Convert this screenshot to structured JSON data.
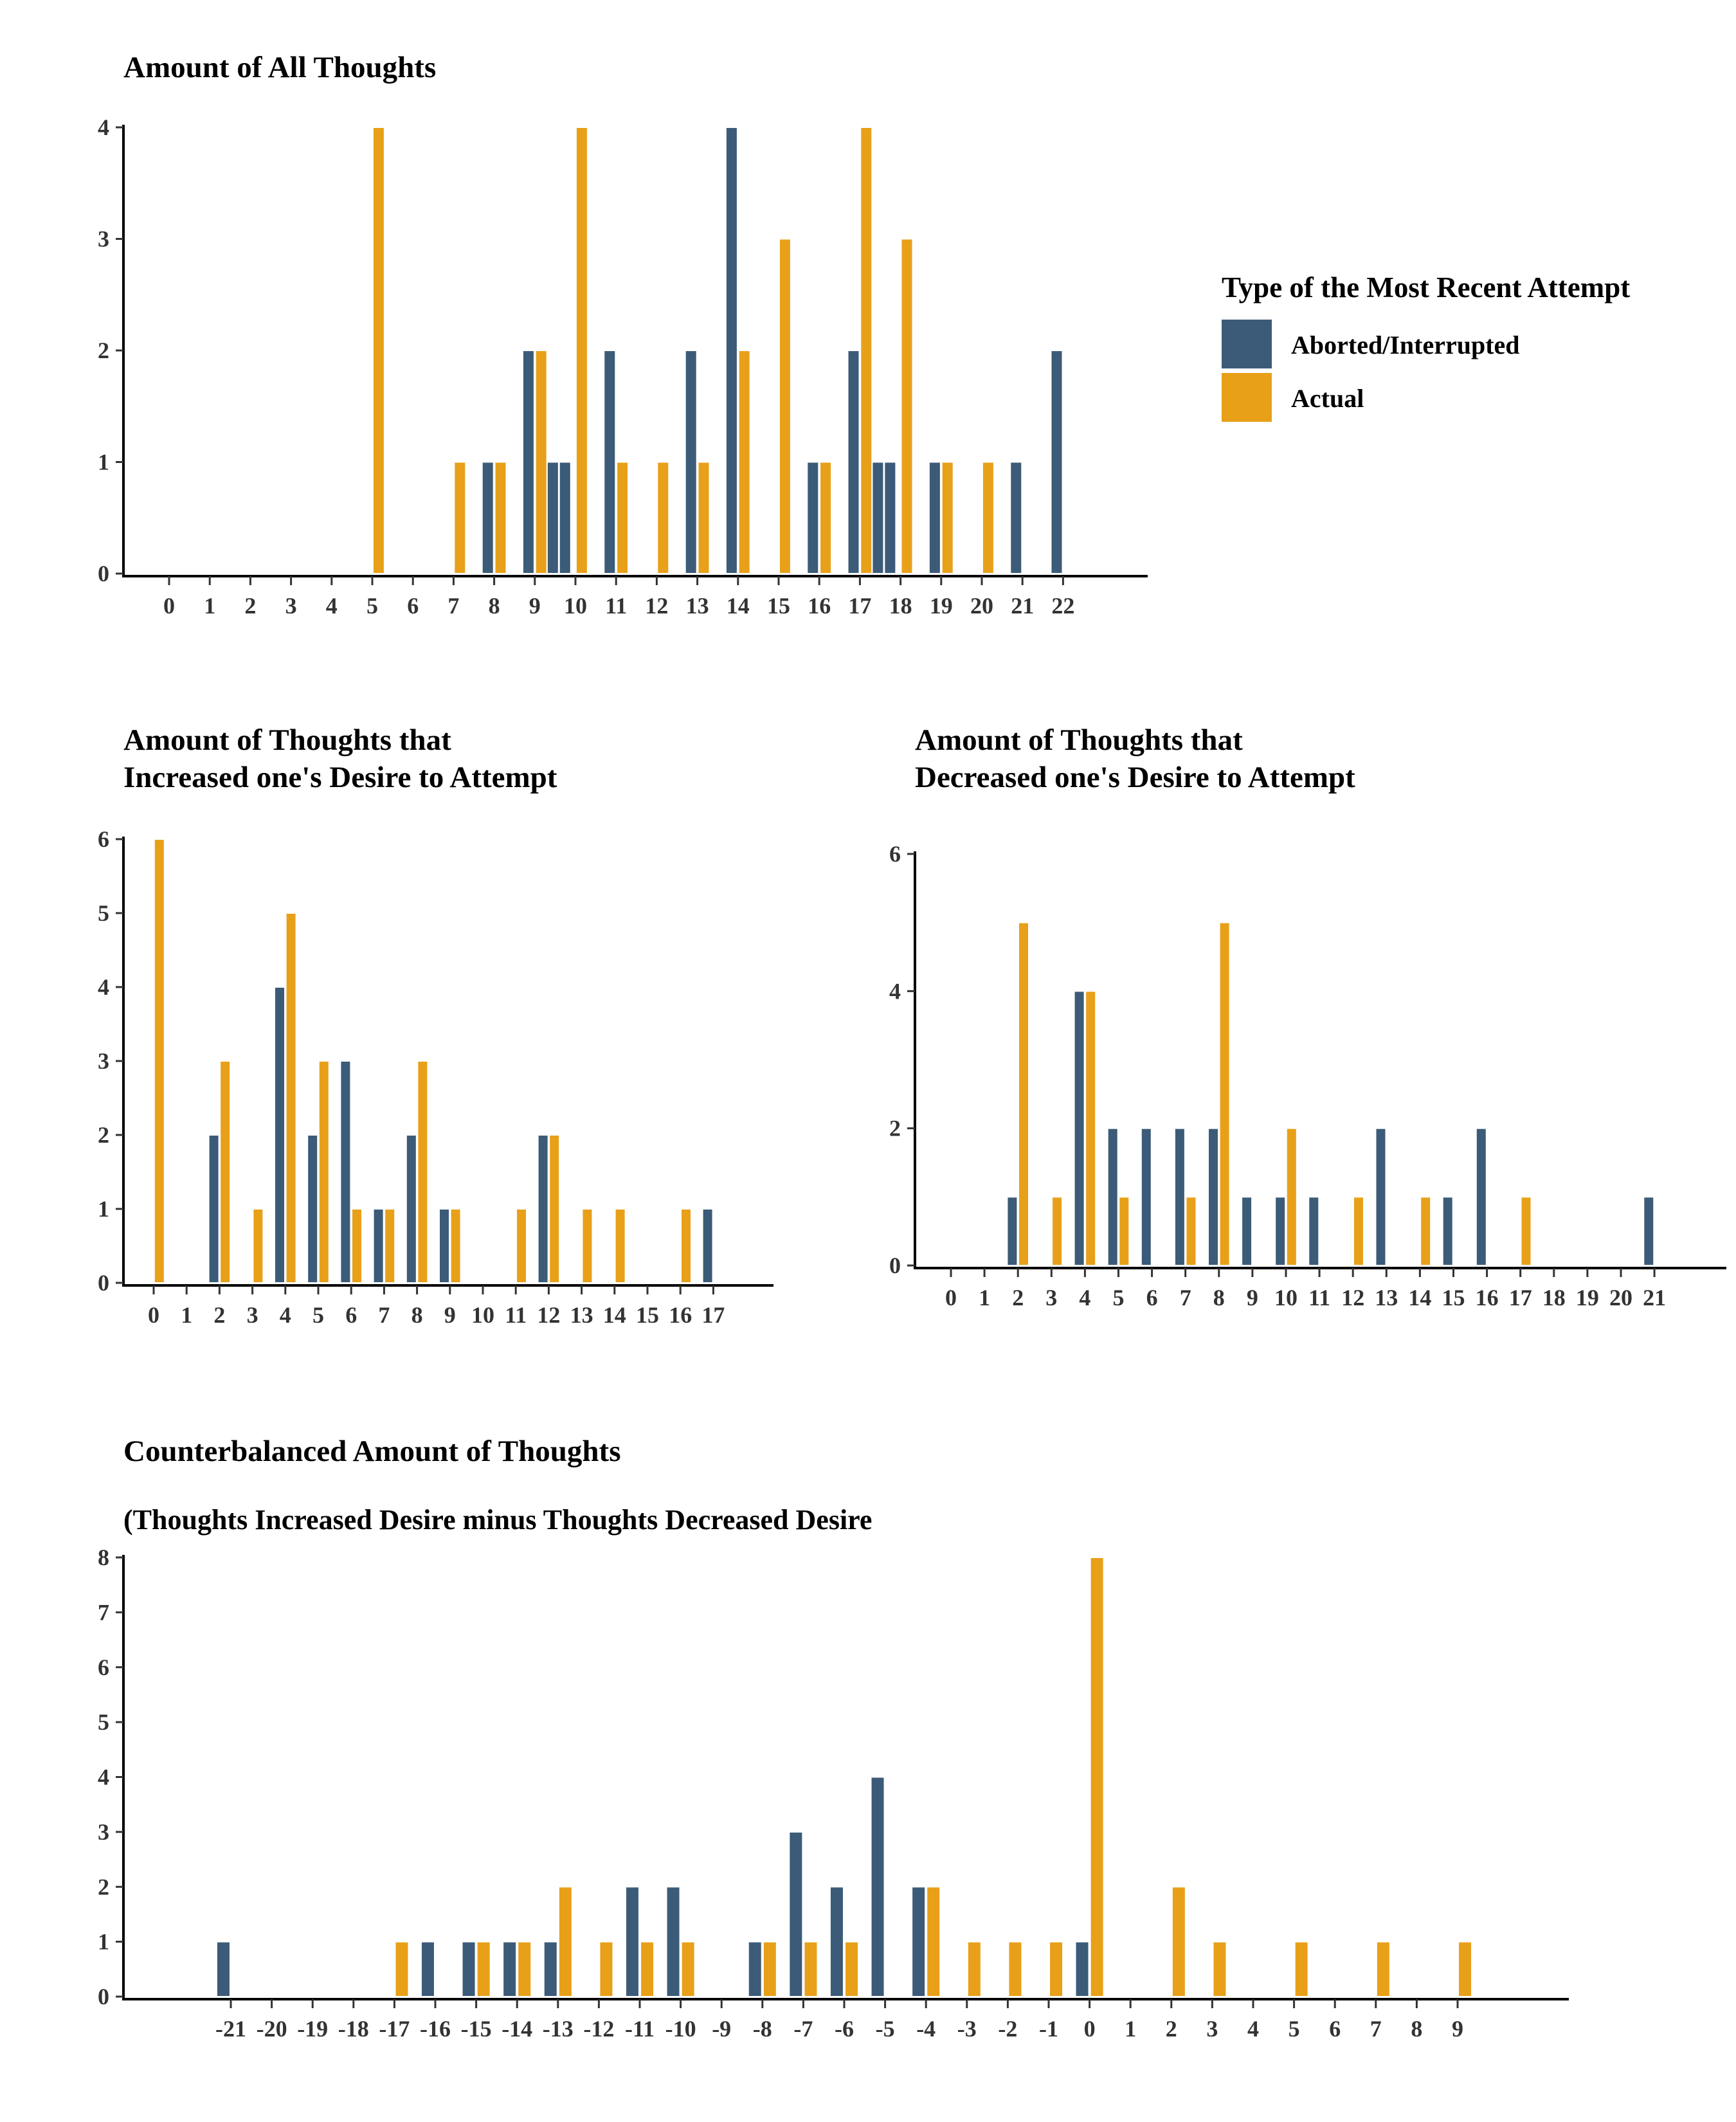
{
  "legend": {
    "title": "Type of the Most Recent Attempt",
    "items": [
      {
        "label": "Aborted/Interrupted",
        "color": "#3b5b78"
      },
      {
        "label": "Actual",
        "color": "#e8a019"
      }
    ]
  },
  "chart_data": [
    {
      "type": "bar",
      "title": "Amount of All Thoughts",
      "ylim": [
        0,
        4
      ],
      "yticks": [
        0,
        1,
        2,
        3,
        4
      ],
      "series": [
        {
          "name": "Aborted/Interrupted",
          "points": [
            [
              8,
              1
            ],
            [
              9,
              2
            ],
            [
              9.6,
              1
            ],
            [
              9.9,
              1
            ],
            [
              11,
              2
            ],
            [
              13,
              2
            ],
            [
              14,
              4
            ],
            [
              16,
              1
            ],
            [
              17,
              2
            ],
            [
              17.6,
              1
            ],
            [
              17.9,
              1
            ],
            [
              19,
              1
            ],
            [
              21,
              1
            ],
            [
              22,
              2
            ]
          ]
        },
        {
          "name": "Actual",
          "points": [
            [
              5,
              4
            ],
            [
              7,
              1
            ],
            [
              8,
              1
            ],
            [
              9,
              2
            ],
            [
              10,
              4
            ],
            [
              11,
              1
            ],
            [
              12,
              1
            ],
            [
              13,
              1
            ],
            [
              14,
              2
            ],
            [
              15,
              3
            ],
            [
              16,
              1
            ],
            [
              17,
              4
            ],
            [
              18,
              3
            ],
            [
              19,
              1
            ],
            [
              20,
              1
            ]
          ]
        }
      ],
      "xticks": [
        "0",
        "1",
        "2",
        "3",
        "4",
        "5",
        "6",
        "7",
        "8",
        "9",
        "10",
        "11",
        "12",
        "13",
        "14",
        "15",
        "16",
        "17",
        "18",
        "19",
        "20",
        "21",
        "22"
      ]
    },
    {
      "type": "bar",
      "title": "Amount of Thoughts that\nIncreased one's Desire to Attempt",
      "ylim": [
        0,
        6
      ],
      "yticks": [
        0,
        1,
        2,
        3,
        4,
        5,
        6
      ],
      "series": [
        {
          "name": "Aborted/Interrupted",
          "points": [
            [
              2,
              2
            ],
            [
              4,
              4
            ],
            [
              5,
              2
            ],
            [
              6,
              3
            ],
            [
              7,
              1
            ],
            [
              8,
              2
            ],
            [
              9,
              1
            ],
            [
              12,
              2
            ],
            [
              17,
              1
            ]
          ]
        },
        {
          "name": "Actual",
          "points": [
            [
              0,
              6
            ],
            [
              2,
              3
            ],
            [
              3,
              1
            ],
            [
              4,
              5
            ],
            [
              5,
              3
            ],
            [
              6,
              1
            ],
            [
              7,
              1
            ],
            [
              8,
              3
            ],
            [
              9,
              1
            ],
            [
              11,
              1
            ],
            [
              12,
              2
            ],
            [
              13,
              1
            ],
            [
              14,
              1
            ],
            [
              16,
              1
            ]
          ]
        }
      ],
      "xticks": [
        "0",
        "1",
        "2",
        "3",
        "4",
        "5",
        "6",
        "7",
        "8",
        "9",
        "10",
        "11",
        "12",
        "13",
        "14",
        "15",
        "16",
        "17"
      ]
    },
    {
      "type": "bar",
      "title": "Amount of Thoughts that\nDecreased one's Desire to Attempt",
      "ylim": [
        0,
        6
      ],
      "yticks": [
        0,
        2,
        4,
        6
      ],
      "series": [
        {
          "name": "Aborted/Interrupted",
          "points": [
            [
              2,
              1
            ],
            [
              4,
              4
            ],
            [
              5,
              2
            ],
            [
              6,
              2
            ],
            [
              7,
              2
            ],
            [
              8,
              2
            ],
            [
              9,
              1
            ],
            [
              10,
              1
            ],
            [
              11,
              1
            ],
            [
              13,
              2
            ],
            [
              15,
              1
            ],
            [
              16,
              2
            ],
            [
              21,
              1
            ]
          ]
        },
        {
          "name": "Actual",
          "points": [
            [
              2,
              5
            ],
            [
              3,
              1
            ],
            [
              4,
              4
            ],
            [
              5,
              1
            ],
            [
              7,
              1
            ],
            [
              8,
              5
            ],
            [
              10,
              2
            ],
            [
              12,
              1
            ],
            [
              14,
              1
            ],
            [
              17,
              1
            ]
          ]
        }
      ],
      "xticks": [
        "0",
        "1",
        "2",
        "3",
        "4",
        "5",
        "6",
        "7",
        "8",
        "9",
        "10",
        "11",
        "12",
        "13",
        "14",
        "15",
        "16",
        "17",
        "18",
        "19",
        "20",
        "21"
      ]
    },
    {
      "type": "bar",
      "title": "Counterbalanced Amount of Thoughts",
      "subtitle": "(Thoughts Increased Desire minus Thoughts Decreased Desire",
      "ylim": [
        0,
        8
      ],
      "yticks": [
        0,
        1,
        2,
        3,
        4,
        5,
        6,
        7,
        8
      ],
      "series": [
        {
          "name": "Aborted/Interrupted",
          "points": [
            [
              -21,
              1
            ],
            [
              -16,
              1
            ],
            [
              -15,
              1
            ],
            [
              -14,
              1
            ],
            [
              -13,
              1
            ],
            [
              -11,
              2
            ],
            [
              -10,
              2
            ],
            [
              -8,
              1
            ],
            [
              -7,
              3
            ],
            [
              -6,
              2
            ],
            [
              -5,
              4
            ],
            [
              -4,
              2
            ],
            [
              0,
              1
            ]
          ]
        },
        {
          "name": "Actual",
          "points": [
            [
              -17,
              1
            ],
            [
              -15,
              1
            ],
            [
              -14,
              1
            ],
            [
              -13,
              2
            ],
            [
              -12,
              1
            ],
            [
              -11,
              1
            ],
            [
              -10,
              1
            ],
            [
              -8,
              1
            ],
            [
              -7,
              1
            ],
            [
              -6,
              1
            ],
            [
              -4,
              2
            ],
            [
              -3,
              1
            ],
            [
              -2,
              1
            ],
            [
              -1,
              1
            ],
            [
              0,
              8
            ],
            [
              2,
              2
            ],
            [
              3,
              1
            ],
            [
              5,
              1
            ],
            [
              7,
              1
            ],
            [
              9,
              1
            ]
          ]
        }
      ],
      "xticks": [
        "-21",
        "-20",
        "-19",
        "-18",
        "-17",
        "-16",
        "-15",
        "-14",
        "-13",
        "-12",
        "-11",
        "-10",
        "-9",
        "-8",
        "-7",
        "-6",
        "-5",
        "-4",
        "-3",
        "-2",
        "-1",
        "0",
        "1",
        "2",
        "3",
        "4",
        "5",
        "6",
        "7",
        "8",
        "9"
      ]
    }
  ]
}
